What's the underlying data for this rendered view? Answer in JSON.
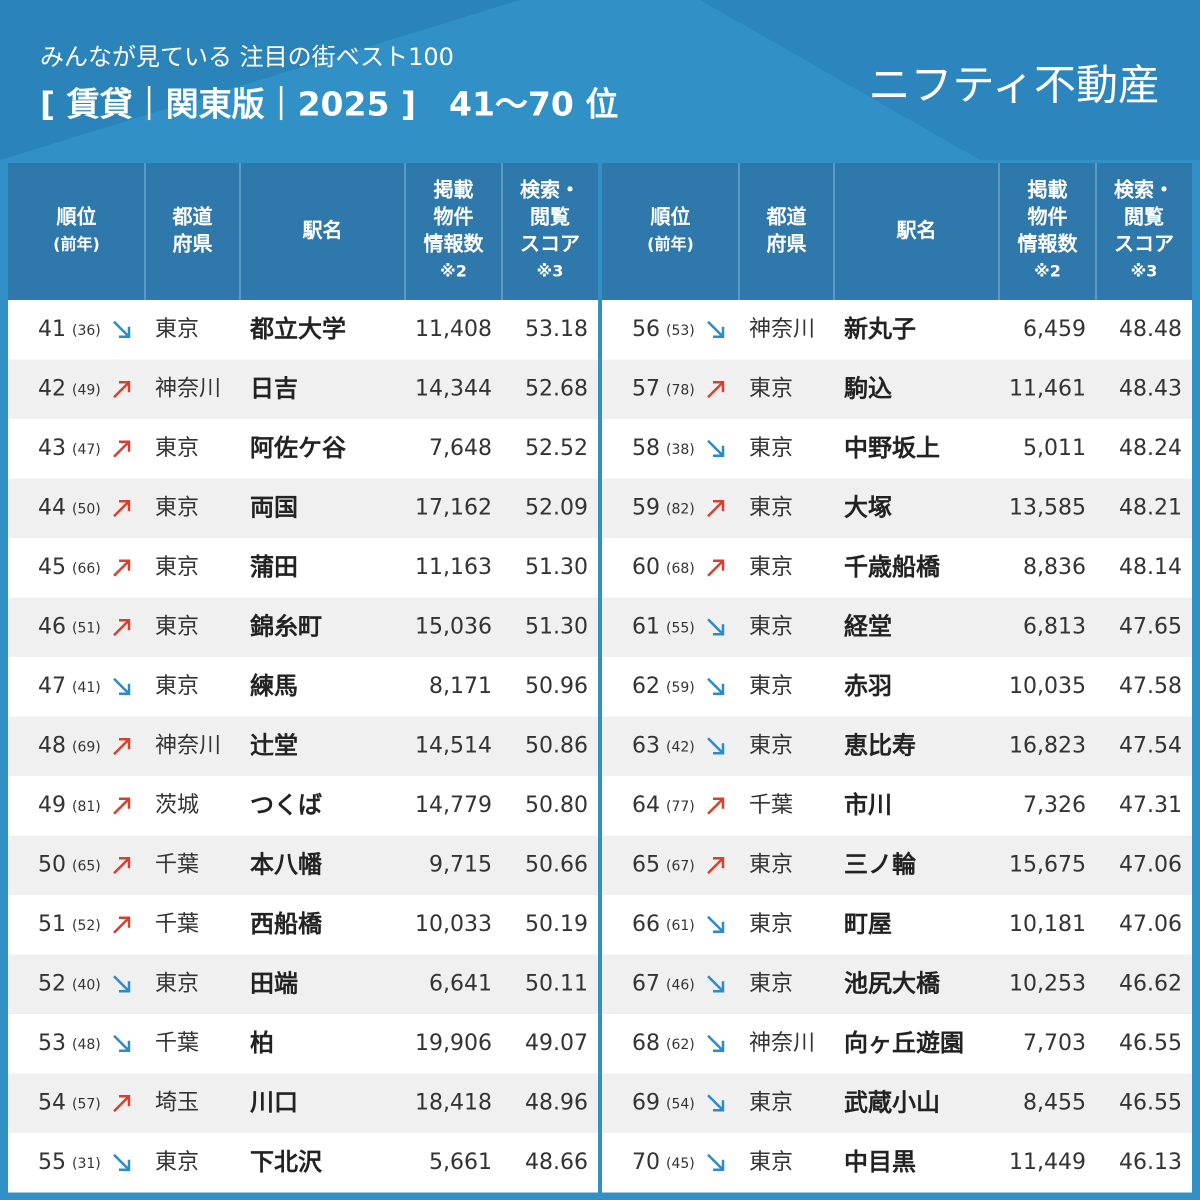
{
  "header": {
    "subtitle": "みんなが見ている 注目の街ベスト100",
    "title": "[ 賃貸｜関東版｜2025 ]　41〜70 位",
    "brand": "ニフティ不動産"
  },
  "columns": [
    [
      "順位",
      "(前年)"
    ],
    [
      "都道",
      "府県"
    ],
    [
      "駅名"
    ],
    [
      "掲載",
      "物件",
      "情報数",
      "※2"
    ],
    [
      "検索・",
      "閲覧",
      "スコア",
      "※3"
    ]
  ],
  "tables": [
    {
      "rows": [
        [
          "41",
          "(36)",
          "東京",
          "都立大学",
          "11,408",
          "53.18"
        ],
        [
          "42",
          "(49)",
          "神奈川",
          "日吉",
          "14,344",
          "52.68"
        ],
        [
          "43",
          "(47)",
          "東京",
          "阿佐ケ谷",
          "7,648",
          "52.52"
        ],
        [
          "44",
          "(50)",
          "東京",
          "両国",
          "17,162",
          "52.09"
        ],
        [
          "45",
          "(66)",
          "東京",
          "蒲田",
          "11,163",
          "51.30"
        ],
        [
          "46",
          "(51)",
          "東京",
          "錦糸町",
          "15,036",
          "51.30"
        ],
        [
          "47",
          "(41)",
          "東京",
          "練馬",
          "8,171",
          "50.96"
        ],
        [
          "48",
          "(69)",
          "神奈川",
          "辻堂",
          "14,514",
          "50.86"
        ],
        [
          "49",
          "(81)",
          "茨城",
          "つくば",
          "14,779",
          "50.80"
        ],
        [
          "50",
          "(65)",
          "千葉",
          "本八幡",
          "9,715",
          "50.66"
        ],
        [
          "51",
          "(52)",
          "千葉",
          "西船橋",
          "10,033",
          "50.19"
        ],
        [
          "52",
          "(40)",
          "東京",
          "田端",
          "6,641",
          "50.11"
        ],
        [
          "53",
          "(48)",
          "千葉",
          "柏",
          "19,906",
          "49.07"
        ],
        [
          "54",
          "(57)",
          "埼玉",
          "川口",
          "18,418",
          "48.96"
        ],
        [
          "55",
          "(31)",
          "東京",
          "下北沢",
          "5,661",
          "48.66"
        ]
      ]
    },
    {
      "rows": [
        [
          "56",
          "(53)",
          "神奈川",
          "新丸子",
          "6,459",
          "48.48"
        ],
        [
          "57",
          "(78)",
          "東京",
          "駒込",
          "11,461",
          "48.43"
        ],
        [
          "58",
          "(38)",
          "東京",
          "中野坂上",
          "5,011",
          "48.24"
        ],
        [
          "59",
          "(82)",
          "東京",
          "大塚",
          "13,585",
          "48.21"
        ],
        [
          "60",
          "(68)",
          "東京",
          "千歳船橋",
          "8,836",
          "48.14"
        ],
        [
          "61",
          "(55)",
          "東京",
          "経堂",
          "6,813",
          "47.65"
        ],
        [
          "62",
          "(59)",
          "東京",
          "赤羽",
          "10,035",
          "47.58"
        ],
        [
          "63",
          "(42)",
          "東京",
          "恵比寿",
          "16,823",
          "47.54"
        ],
        [
          "64",
          "(77)",
          "千葉",
          "市川",
          "7,326",
          "47.31"
        ],
        [
          "65",
          "(67)",
          "東京",
          "三ノ輪",
          "15,675",
          "47.06"
        ],
        [
          "66",
          "(61)",
          "東京",
          "町屋",
          "10,181",
          "47.06"
        ],
        [
          "67",
          "(46)",
          "東京",
          "池尻大橋",
          "10,253",
          "46.62"
        ],
        [
          "68",
          "(62)",
          "神奈川",
          "向ヶ丘遊園",
          "7,703",
          "46.55"
        ],
        [
          "69",
          "(54)",
          "東京",
          "武蔵小山",
          "8,455",
          "46.55"
        ],
        [
          "70",
          "(45)",
          "東京",
          "中目黒",
          "11,449",
          "46.13"
        ]
      ]
    }
  ]
}
